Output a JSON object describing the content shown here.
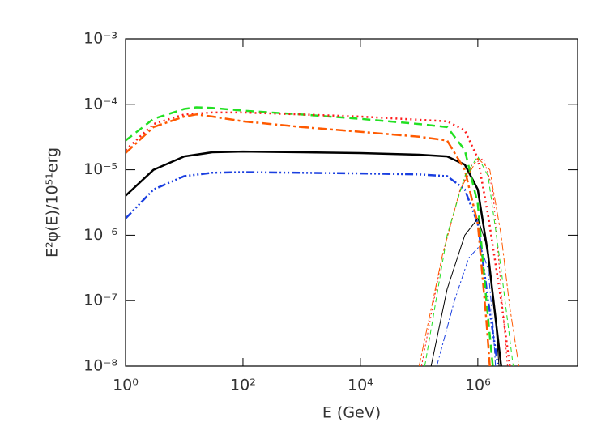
{
  "chart_data": {
    "type": "line",
    "log_x": true,
    "log_y": true,
    "xlabel": "E (GeV)",
    "ylabel": "E²φ(E)/10⁵¹erg",
    "xlim": [
      1,
      50000000
    ],
    "ylim": [
      1e-08,
      0.001
    ],
    "xticks": [
      {
        "value": 1,
        "label": "10⁰"
      },
      {
        "value": 100,
        "label": "10²"
      },
      {
        "value": 10000,
        "label": "10⁴"
      },
      {
        "value": 1000000,
        "label": "10⁶"
      }
    ],
    "yticks": [
      {
        "value": 1e-08,
        "label": "10⁻⁸"
      },
      {
        "value": 1e-07,
        "label": "10⁻⁷"
      },
      {
        "value": 1e-06,
        "label": "10⁻⁶"
      },
      {
        "value": 1e-05,
        "label": "10⁻⁵"
      },
      {
        "value": 0.0001,
        "label": "10⁻⁴"
      },
      {
        "value": 0.001,
        "label": "10⁻³"
      }
    ],
    "series": [
      {
        "color": "#000000",
        "width": 2.5,
        "dash": "none",
        "x": [
          1,
          3,
          10,
          30,
          100,
          1000,
          10000,
          100000,
          300000,
          600000,
          1000000,
          1500000,
          2500000
        ],
        "values": [
          4e-06,
          1e-05,
          1.6e-05,
          1.85e-05,
          1.9e-05,
          1.85e-05,
          1.8e-05,
          1.7e-05,
          1.6e-05,
          1.2e-05,
          5e-06,
          5e-07,
          1e-08
        ]
      },
      {
        "color": "#1a3fe0",
        "width": 2.5,
        "dash": "10 3 2 3 2 3 2 3",
        "x": [
          1,
          3,
          10,
          30,
          100,
          1000,
          10000,
          100000,
          300000,
          600000,
          1000000,
          1500000,
          2200000
        ],
        "values": [
          1.8e-06,
          5e-06,
          8e-06,
          9e-06,
          9.2e-06,
          9e-06,
          8.8e-06,
          8.5e-06,
          8e-06,
          5e-06,
          1.5e-06,
          1e-07,
          1e-08
        ]
      },
      {
        "color": "#22e022",
        "width": 2.5,
        "dash": "10 6",
        "x": [
          1,
          3,
          10,
          16,
          30,
          100,
          1000,
          10000,
          100000,
          300000,
          600000,
          1000000,
          1400000,
          1800000
        ],
        "values": [
          2.8e-05,
          6e-05,
          8.5e-05,
          9e-05,
          8.8e-05,
          8e-05,
          7e-05,
          6e-05,
          5e-05,
          4.5e-05,
          2e-05,
          3e-06,
          1e-07,
          1e-08
        ]
      },
      {
        "color": "#ff1a1a",
        "width": 2.5,
        "dash": "2 4",
        "x": [
          1,
          3,
          10,
          30,
          100,
          1000,
          10000,
          100000,
          300000,
          600000,
          1000000,
          1500000,
          2500000,
          3500000
        ],
        "values": [
          2e-05,
          5e-05,
          7e-05,
          7.5e-05,
          7.5e-05,
          7e-05,
          6.5e-05,
          5.8e-05,
          5.5e-05,
          4e-05,
          1.5e-05,
          2e-06,
          1e-07,
          1e-08
        ]
      },
      {
        "color": "#ff5a00",
        "width": 2.5,
        "dash": "12 4 3 4",
        "x": [
          1,
          3,
          10,
          16,
          30,
          100,
          1000,
          10000,
          100000,
          300000,
          600000,
          1000000,
          1400000,
          1600000
        ],
        "values": [
          1.8e-05,
          4.5e-05,
          6.5e-05,
          7e-05,
          6.5e-05,
          5.5e-05,
          4.5e-05,
          3.8e-05,
          3.2e-05,
          2.8e-05,
          1e-05,
          1.5e-06,
          5e-08,
          1e-08
        ]
      },
      {
        "color": "#000000",
        "width": 1,
        "dash": "none",
        "x": [
          160000,
          300000,
          600000,
          1000000,
          1500000,
          2000000,
          2300000
        ],
        "values": [
          1e-08,
          1.5e-07,
          1e-06,
          1.8e-06,
          6e-07,
          5e-08,
          1e-08
        ]
      },
      {
        "color": "#1a3fe0",
        "width": 1,
        "dash": "8 3 2 3",
        "x": [
          200000,
          400000,
          700000,
          1100000,
          1500000,
          1800000,
          2000000
        ],
        "values": [
          1e-08,
          1e-07,
          4.5e-07,
          7e-07,
          3e-07,
          5e-08,
          1e-08
        ]
      },
      {
        "color": "#ff1a1a",
        "width": 1,
        "dash": "2 3",
        "x": [
          110000,
          250000,
          500000,
          800000,
          1250000,
          1800000,
          2500000,
          3200000
        ],
        "values": [
          1e-08,
          5e-07,
          5e-06,
          1.2e-05,
          1.5e-05,
          5e-06,
          1.5e-07,
          1e-08
        ]
      },
      {
        "color": "#ff5a00",
        "width": 1,
        "dash": "10 3 3 3",
        "x": [
          100000,
          250000,
          500000,
          1000000,
          1600000,
          2500000,
          3500000,
          5000000
        ],
        "values": [
          1e-08,
          5e-07,
          5e-06,
          1.5e-05,
          1e-05,
          1e-06,
          8e-08,
          1e-08
        ]
      },
      {
        "color": "#22e022",
        "width": 1,
        "dash": "6 4",
        "x": [
          125000,
          300000,
          600000,
          1000000,
          1500000,
          2500000,
          4000000
        ],
        "values": [
          1e-08,
          1e-06,
          8e-06,
          1.6e-05,
          8e-06,
          3e-07,
          1e-08
        ]
      }
    ]
  }
}
